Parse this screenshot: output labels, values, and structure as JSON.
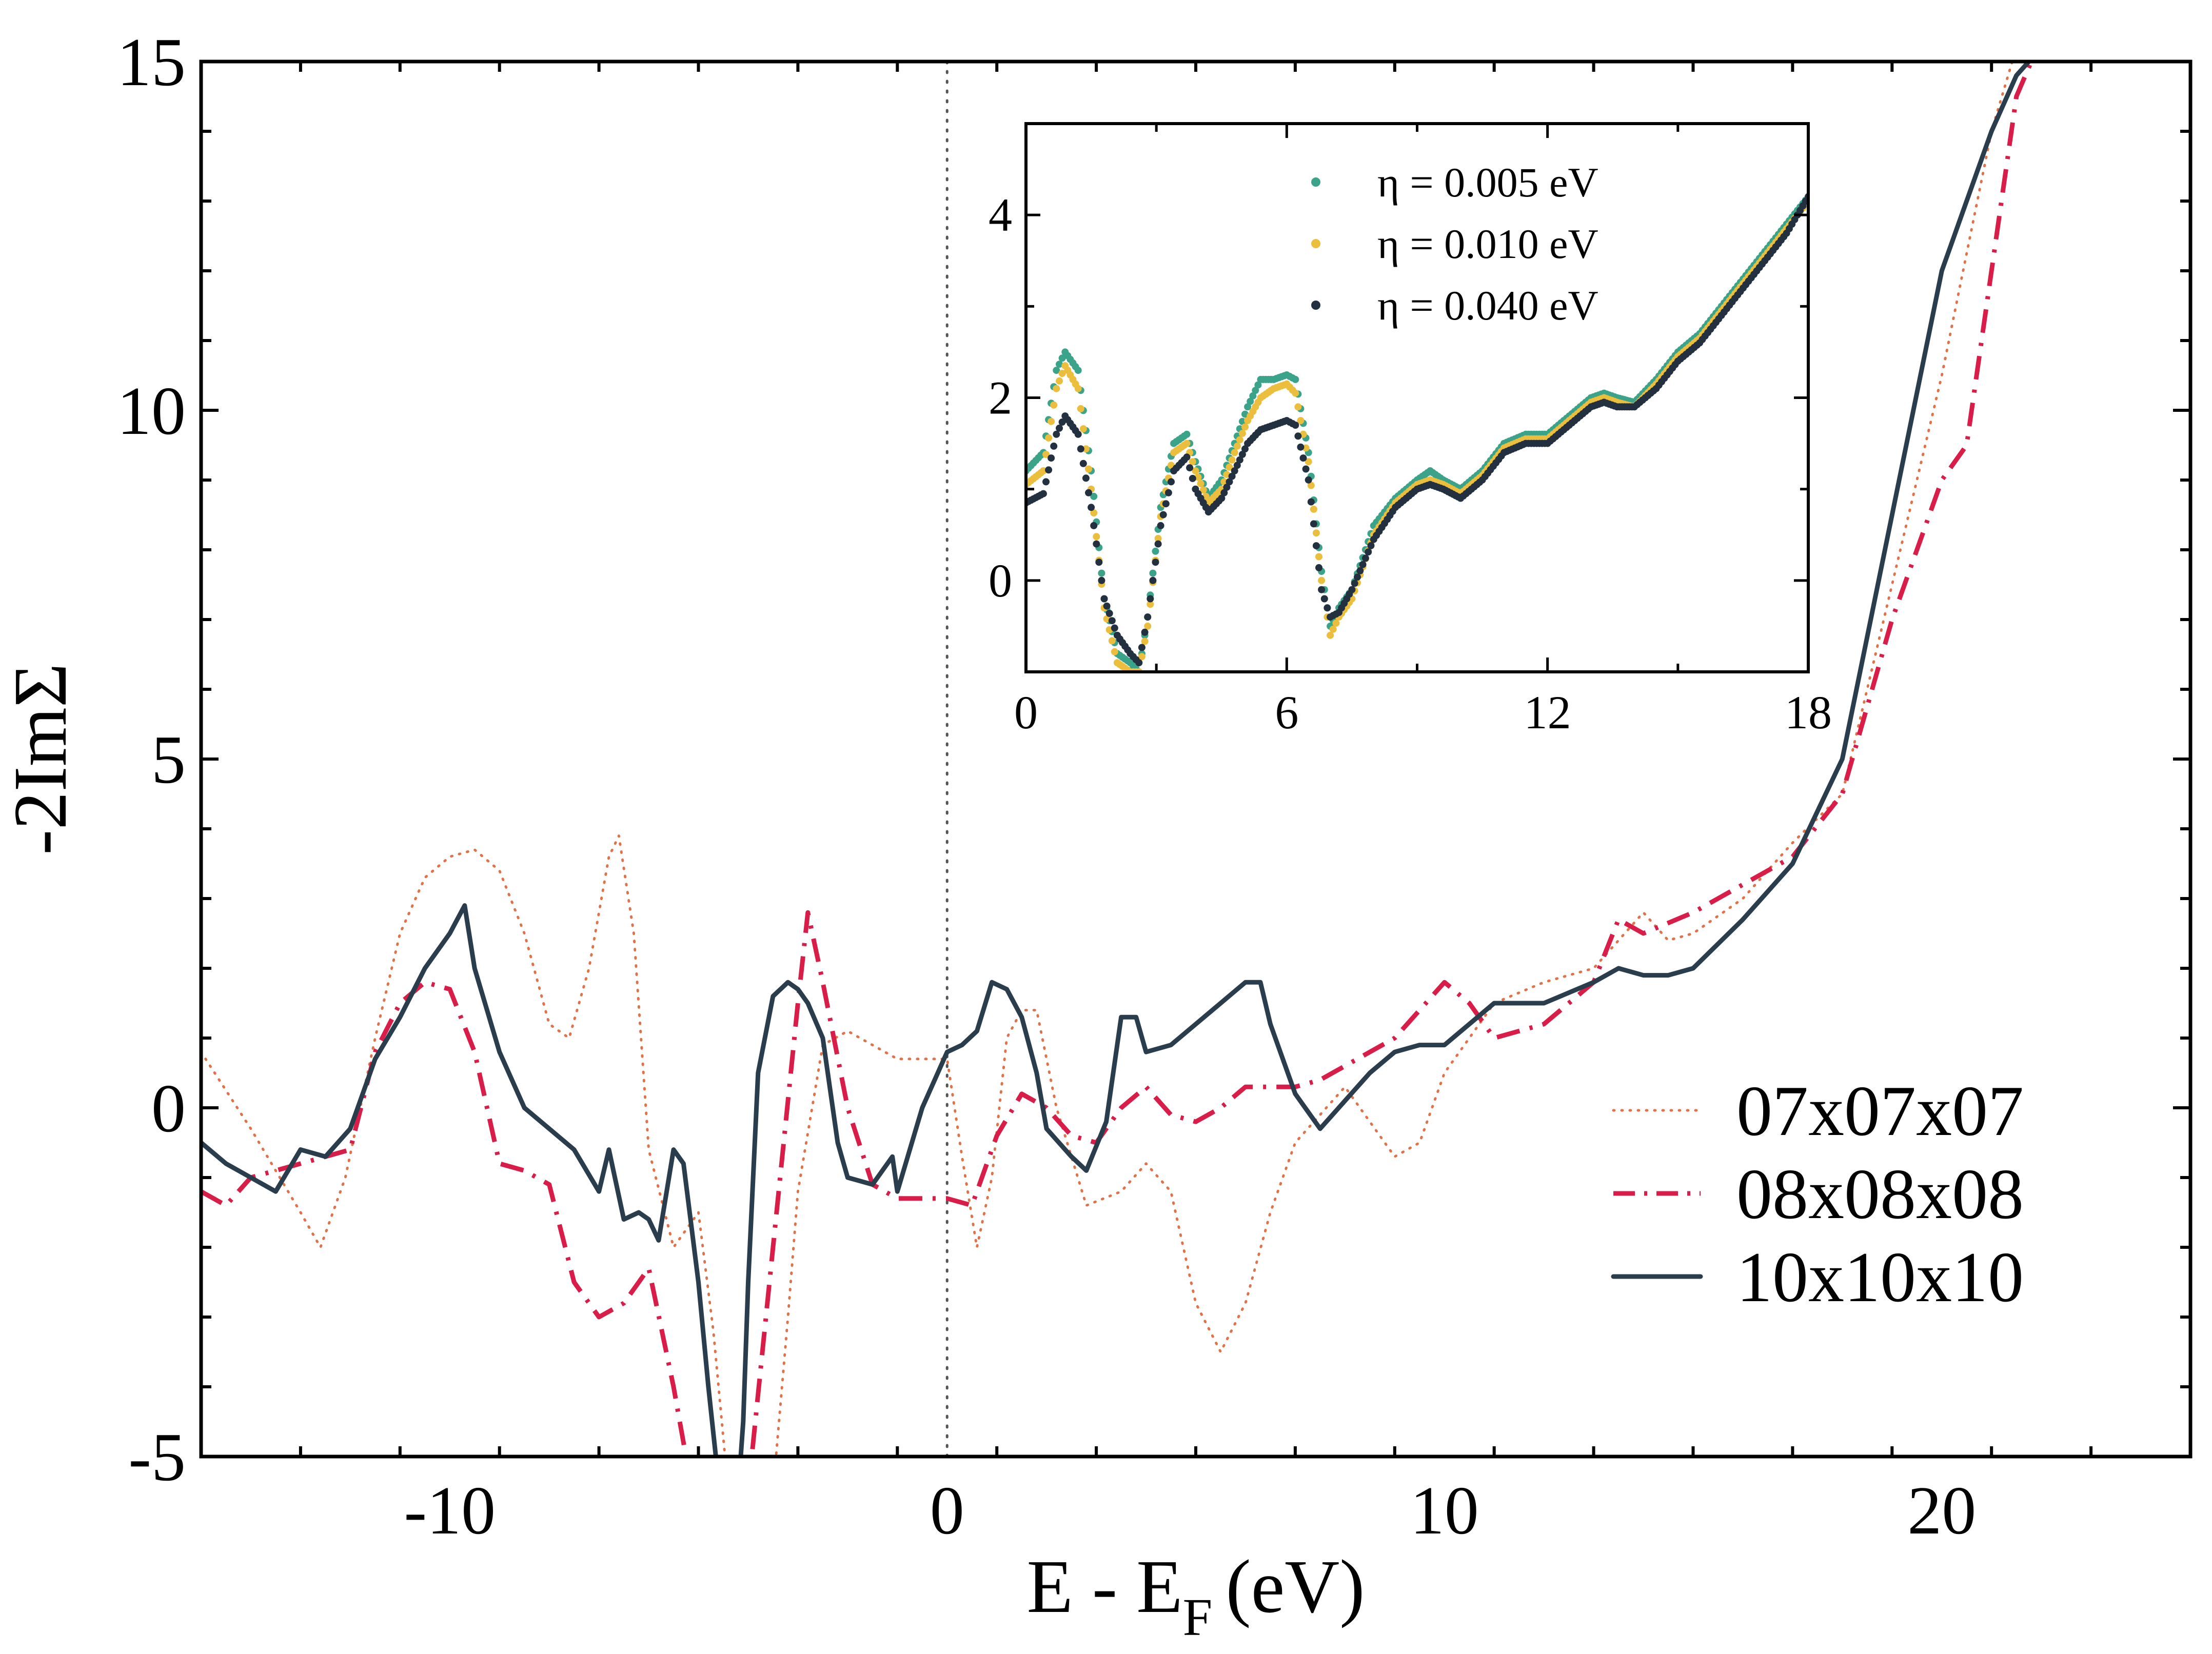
{
  "colors": {
    "series_07": "#e0724a",
    "series_08": "#d81e48",
    "series_10": "#2a3d4c",
    "eta_005": "#3aa38a",
    "eta_010": "#ebbe3e",
    "eta_040": "#22303f",
    "axis": "#000000",
    "fermi_line": "#555555"
  },
  "chart_data": [
    {
      "id": "main",
      "type": "line",
      "title": "",
      "xlabel": "E - E",
      "xlabel_sub": "F",
      "xlabel_unit": "(eV)",
      "ylabel": "-2ImΣ",
      "xlim": [
        -15,
        25
      ],
      "ylim": [
        -5,
        15
      ],
      "xticks": [
        -10,
        0,
        10,
        20
      ],
      "xtick_labels": [
        "-10",
        "0",
        "10",
        "20"
      ],
      "yticks": [
        -5,
        0,
        5,
        10,
        15
      ],
      "ytick_labels": [
        "-5",
        "0",
        "5",
        "10",
        "15"
      ],
      "x_minor_step": 2,
      "y_minor_step": 1,
      "vline_x": 0,
      "legend_position": "lower-right",
      "series": [
        {
          "name": "07x07x07",
          "style": "dotted",
          "x": [
            -15,
            -14,
            -13,
            -12.6,
            -12.1,
            -11.5,
            -11,
            -10.5,
            -10,
            -9.5,
            -9,
            -8.5,
            -8,
            -7.6,
            -7.2,
            -6.8,
            -6.6,
            -6.3,
            -6,
            -5.5,
            -5,
            -4.7,
            -4.4,
            -4.1,
            -3.8,
            -3.5,
            -3.2,
            -3,
            -2.5,
            -2,
            -1,
            0,
            0.3,
            0.6,
            0.9,
            1.2,
            1.5,
            1.8,
            2.2,
            2.8,
            3.5,
            4,
            4.5,
            5,
            5.5,
            6,
            6.5,
            7,
            8,
            9,
            9.5,
            10,
            11,
            12,
            13,
            14,
            14.5,
            15,
            16,
            17,
            18,
            19,
            20,
            21,
            21.5,
            22
          ],
          "y": [
            0.8,
            -0.3,
            -1.5,
            -2.0,
            -1.0,
            1.0,
            2.5,
            3.3,
            3.6,
            3.7,
            3.4,
            2.5,
            1.2,
            1.0,
            2.0,
            3.6,
            3.9,
            2.5,
            -0.6,
            -2.0,
            -1.5,
            -3.2,
            -5.5,
            -7.0,
            -6.5,
            -5.5,
            -3.0,
            -1.2,
            0.9,
            1.1,
            0.7,
            0.7,
            -0.7,
            -2.0,
            -1.0,
            1.0,
            1.4,
            1.4,
            0,
            -1.4,
            -1.2,
            -0.8,
            -1.2,
            -2.8,
            -3.5,
            -2.8,
            -1.5,
            -0.5,
            0.3,
            -0.7,
            -0.5,
            0.5,
            1.5,
            1.8,
            2.0,
            2.8,
            2.4,
            2.5,
            3.0,
            3.8,
            4.5,
            7.5,
            10.5,
            14.0,
            15.2,
            16.0
          ]
        },
        {
          "name": "08x08x08",
          "style": "dashdot",
          "x": [
            -15,
            -14.5,
            -14,
            -13,
            -12,
            -11.5,
            -11,
            -10.5,
            -10,
            -9.5,
            -9,
            -8.5,
            -8,
            -7.5,
            -7,
            -6.5,
            -6,
            -5.5,
            -5,
            -4.5,
            -4,
            -3.5,
            -3,
            -2.8,
            -2.5,
            -2,
            -1.5,
            -1,
            0,
            0.5,
            1,
            1.5,
            2,
            2.5,
            3,
            3.5,
            4,
            4.5,
            5,
            5.5,
            6,
            6.5,
            7,
            7.5,
            8,
            9,
            10,
            10.5,
            11,
            12,
            13,
            13.5,
            14,
            15,
            16,
            17,
            18,
            19,
            20,
            20.5,
            21,
            21.5,
            21.8
          ],
          "y": [
            -1.2,
            -1.4,
            -1.0,
            -0.8,
            -0.6,
            0.8,
            1.5,
            1.8,
            1.7,
            0.8,
            -0.8,
            -0.9,
            -1.1,
            -2.5,
            -3.0,
            -2.8,
            -2.3,
            -4.0,
            -6.0,
            -7.0,
            -5.5,
            -2.0,
            1.5,
            2.8,
            1.8,
            0,
            -1.1,
            -1.3,
            -1.3,
            -1.4,
            -0.4,
            0.2,
            0.0,
            -0.4,
            -0.5,
            0.0,
            0.3,
            -0.1,
            -0.2,
            0.0,
            0.3,
            0.3,
            0.3,
            0.4,
            0.6,
            1.0,
            1.8,
            1.5,
            1.0,
            1.2,
            1.8,
            2.7,
            2.5,
            2.8,
            3.2,
            3.6,
            4.5,
            7.0,
            9.0,
            9.5,
            12.0,
            14.5,
            15.0
          ]
        },
        {
          "name": "10x10x10",
          "style": "solid",
          "x": [
            -15,
            -14.5,
            -14,
            -13.5,
            -13,
            -12.5,
            -12,
            -11.5,
            -11,
            -10.5,
            -10,
            -9.7,
            -9.5,
            -9,
            -8.5,
            -8,
            -7.5,
            -7,
            -6.8,
            -6.5,
            -6.2,
            -6,
            -5.8,
            -5.5,
            -5.3,
            -5,
            -4.8,
            -4.5,
            -4.3,
            -4.1,
            -4,
            -3.8,
            -3.5,
            -3.2,
            -3,
            -2.8,
            -2.5,
            -2.2,
            -2,
            -1.5,
            -1.1,
            -1,
            -0.5,
            0,
            0.3,
            0.6,
            0.9,
            1.2,
            1.5,
            1.8,
            2,
            2.5,
            2.8,
            3.2,
            3.5,
            3.8,
            4,
            4.5,
            5,
            5.5,
            6,
            6.3,
            6.5,
            7,
            7.5,
            8,
            8.5,
            9,
            9.5,
            10,
            11,
            12,
            13,
            13.5,
            14,
            14.5,
            15,
            16,
            17,
            18,
            19,
            20,
            20.5,
            21,
            21.5,
            22
          ],
          "y": [
            -0.5,
            -0.8,
            -1.0,
            -1.2,
            -0.6,
            -0.7,
            -0.3,
            0.7,
            1.3,
            2.0,
            2.5,
            2.9,
            2.0,
            0.8,
            0,
            -0.3,
            -0.6,
            -1.2,
            -0.6,
            -1.6,
            -1.5,
            -1.6,
            -1.9,
            -0.6,
            -0.8,
            -2.5,
            -4.0,
            -6.0,
            -6.5,
            -4.5,
            -2.5,
            0.5,
            1.6,
            1.8,
            1.7,
            1.5,
            1.0,
            -0.5,
            -1.0,
            -1.1,
            -0.7,
            -1.2,
            0.0,
            0.8,
            0.9,
            1.1,
            1.8,
            1.7,
            1.3,
            0.5,
            -0.3,
            -0.7,
            -0.9,
            -0.2,
            1.3,
            1.3,
            0.8,
            0.9,
            1.2,
            1.5,
            1.8,
            1.8,
            1.2,
            0.2,
            -0.3,
            0.1,
            0.5,
            0.8,
            0.9,
            0.9,
            1.5,
            1.5,
            1.8,
            2.0,
            1.9,
            1.9,
            2.0,
            2.7,
            3.5,
            5.0,
            8.5,
            12.0,
            13.0,
            14.0,
            14.8,
            15.2
          ]
        }
      ]
    },
    {
      "id": "inset",
      "type": "scatter",
      "xlim": [
        0,
        18
      ],
      "ylim": [
        -1,
        5
      ],
      "xticks": [
        0,
        6,
        12,
        18
      ],
      "xtick_labels": [
        "0",
        "6",
        "12",
        "18"
      ],
      "yticks": [
        0,
        2,
        4
      ],
      "ytick_labels": [
        "0",
        "2",
        "4"
      ],
      "x_minor_step": 3,
      "y_minor_step": 1,
      "legend_position": "top-center",
      "series": [
        {
          "name": "η = 0.005 eV",
          "x": [
            0,
            0.4,
            0.7,
            0.9,
            1.2,
            1.5,
            1.8,
            2.1,
            2.4,
            2.6,
            2.8,
            3.1,
            3.4,
            3.7,
            3.9,
            4.2,
            4.5,
            4.8,
            5.1,
            5.4,
            5.7,
            6.0,
            6.2,
            6.5,
            6.8,
            7.0,
            7.2,
            7.5,
            8.0,
            8.5,
            9.0,
            9.3,
            9.6,
            10.0,
            10.5,
            11.0,
            11.5,
            12.0,
            12.5,
            13.0,
            13.3,
            13.6,
            14.0,
            14.5,
            15.0,
            15.5,
            16.0,
            16.5,
            17.0,
            17.5,
            18.0
          ],
          "y": [
            1.2,
            1.4,
            2.3,
            2.5,
            2.3,
            1.2,
            -0.2,
            -0.8,
            -0.9,
            -1.0,
            -0.4,
            0.8,
            1.5,
            1.6,
            1.3,
            0.9,
            1.1,
            1.5,
            1.9,
            2.2,
            2.2,
            2.25,
            2.2,
            1.4,
            0.1,
            -0.5,
            -0.3,
            -0.1,
            0.6,
            0.9,
            1.1,
            1.2,
            1.1,
            1.0,
            1.2,
            1.5,
            1.6,
            1.6,
            1.8,
            2.0,
            2.05,
            2.0,
            1.95,
            2.2,
            2.5,
            2.7,
            3.0,
            3.3,
            3.6,
            3.9,
            4.2
          ]
        },
        {
          "name": "η = 0.010 eV",
          "x": [
            0,
            0.4,
            0.7,
            0.9,
            1.2,
            1.5,
            1.8,
            2.1,
            2.4,
            2.6,
            2.8,
            3.1,
            3.4,
            3.7,
            3.9,
            4.2,
            4.5,
            4.8,
            5.1,
            5.4,
            5.7,
            6.0,
            6.2,
            6.5,
            6.8,
            7.0,
            7.2,
            7.5,
            8.0,
            8.5,
            9.0,
            9.3,
            9.6,
            10.0,
            10.5,
            11.0,
            11.5,
            12.0,
            12.5,
            13.0,
            13.3,
            13.6,
            14.0,
            14.5,
            15.0,
            15.5,
            16.0,
            16.5,
            17.0,
            17.5,
            18.0
          ],
          "y": [
            1.05,
            1.2,
            2.1,
            2.35,
            2.1,
            1.0,
            -0.3,
            -0.9,
            -1.0,
            -1.0,
            -0.5,
            0.7,
            1.4,
            1.5,
            1.2,
            0.85,
            1.0,
            1.4,
            1.75,
            2.0,
            2.1,
            2.15,
            2.05,
            1.3,
            0.0,
            -0.6,
            -0.4,
            -0.2,
            0.5,
            0.85,
            1.05,
            1.1,
            1.05,
            0.95,
            1.15,
            1.45,
            1.55,
            1.55,
            1.75,
            1.95,
            2.0,
            1.95,
            1.9,
            2.15,
            2.45,
            2.65,
            2.95,
            3.25,
            3.55,
            3.85,
            4.15
          ]
        },
        {
          "name": "η = 0.040 eV",
          "x": [
            0,
            0.4,
            0.7,
            0.9,
            1.2,
            1.5,
            1.8,
            2.1,
            2.4,
            2.6,
            2.8,
            3.1,
            3.4,
            3.7,
            3.9,
            4.2,
            4.5,
            4.8,
            5.1,
            5.4,
            5.7,
            6.0,
            6.2,
            6.5,
            6.8,
            7.0,
            7.2,
            7.5,
            8.0,
            8.5,
            9.0,
            9.3,
            9.6,
            10.0,
            10.5,
            11.0,
            11.5,
            12.0,
            12.5,
            13.0,
            13.3,
            13.6,
            14.0,
            14.5,
            15.0,
            15.5,
            16.0,
            16.5,
            17.0,
            17.5,
            18.0
          ],
          "y": [
            0.85,
            0.95,
            1.6,
            1.8,
            1.6,
            0.8,
            -0.2,
            -0.6,
            -0.8,
            -0.9,
            -0.4,
            0.6,
            1.2,
            1.35,
            1.0,
            0.75,
            0.9,
            1.2,
            1.5,
            1.65,
            1.7,
            1.75,
            1.7,
            1.1,
            -0.1,
            -0.4,
            -0.35,
            -0.1,
            0.45,
            0.8,
            1.0,
            1.05,
            1.0,
            0.9,
            1.1,
            1.4,
            1.5,
            1.5,
            1.7,
            1.9,
            1.95,
            1.9,
            1.9,
            2.1,
            2.4,
            2.6,
            2.9,
            3.2,
            3.5,
            3.8,
            4.2
          ]
        }
      ]
    }
  ]
}
